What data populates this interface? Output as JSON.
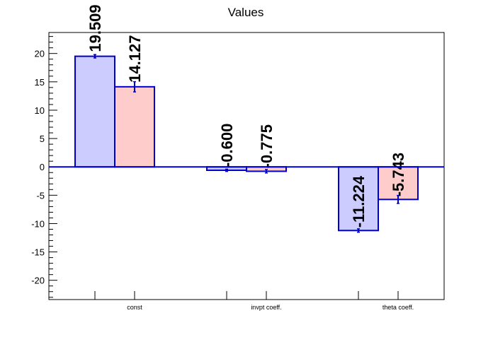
{
  "chart_data": {
    "type": "bar",
    "title": "Values",
    "xlabel": "",
    "ylabel": "",
    "categories": [
      "const",
      "invpt coeff.",
      "theta coeff."
    ],
    "ylim": [
      -23.4,
      23.7
    ],
    "yticks": [
      -20,
      -15,
      -10,
      -5,
      0,
      5,
      10,
      15,
      20
    ],
    "series": [
      {
        "values": [
          19.509,
          -0.6,
          -11.224
        ],
        "labels": [
          "19.509",
          "-0.600",
          "-11.224"
        ],
        "errors": [
          0.3,
          0.2,
          0.3
        ],
        "color": "#ccccff",
        "edge": "#0000cc"
      },
      {
        "values": [
          14.127,
          -0.775,
          -5.743
        ],
        "labels": [
          "14.127",
          "-0.775",
          "-5.743"
        ],
        "errors": [
          0.9,
          0.3,
          0.7
        ],
        "color": "#ffcccc",
        "edge": "#0000cc"
      }
    ],
    "grid": false
  }
}
